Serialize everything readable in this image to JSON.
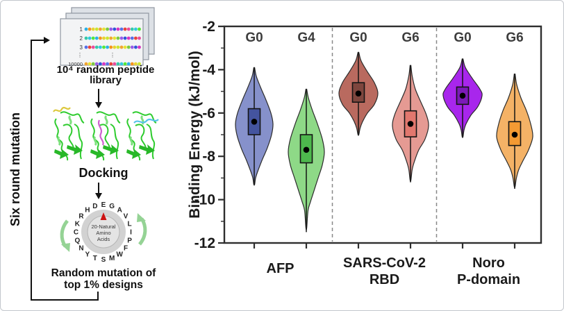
{
  "colors": {
    "frame": "#2e2e2e",
    "dashed_separator": "#888888",
    "axis_text": "#1a1a1a",
    "generation_label": "#3d3d3d",
    "protein_green": "#2ecc2e",
    "loop_line": "#111111",
    "card_fill": "#f3f4f5",
    "card_back_fill": "#dde1e6"
  },
  "workflow": {
    "library": {
      "row_labels": [
        "1",
        "2",
        "3",
        "⋮",
        "10000"
      ],
      "dots_per_row": 16,
      "caption": [
        "10⁴ random peptide",
        "library"
      ],
      "dot_palette": [
        "#2ab1e8",
        "#e84338",
        "#7bc943",
        "#f7941e",
        "#e84c9e",
        "#9a5ce8",
        "#e8d431",
        "#36c9a7",
        "#3056d8",
        "#c9e631",
        "#31c9e0",
        "#d836c0",
        "#f2a531",
        "#56e836",
        "#5670e8",
        "#e8e331"
      ]
    },
    "docking_label": "Docking",
    "docking_peptide_colors": [
      "#ddc93f",
      "#cf5fd0",
      "#55c2ea"
    ],
    "wheel": {
      "center_label": [
        "20-Natural",
        "Amino",
        "Acids"
      ],
      "pointer_color": "#cc1111",
      "rotate_arrow_color": "#95d395",
      "segments": [
        {
          "letter": "E",
          "color": "#f03b28"
        },
        {
          "letter": "G",
          "color": "#45d545"
        },
        {
          "letter": "A",
          "color": "#bac42a"
        },
        {
          "letter": "V",
          "color": "#45d545"
        },
        {
          "letter": "L",
          "color": "#ee3a68"
        },
        {
          "letter": "I",
          "color": "#45d545"
        },
        {
          "letter": "P",
          "color": "#3a77e0"
        },
        {
          "letter": "F",
          "color": "#45d545"
        },
        {
          "letter": "W",
          "color": "#f09a2f"
        },
        {
          "letter": "M",
          "color": "#45d545"
        },
        {
          "letter": "S",
          "color": "#f09a2f"
        },
        {
          "letter": "T",
          "color": "#45d545"
        },
        {
          "letter": "Y",
          "color": "#3a77e0"
        },
        {
          "letter": "N",
          "color": "#45d545"
        },
        {
          "letter": "Q",
          "color": "#38dede"
        },
        {
          "letter": "C",
          "color": "#45d545"
        },
        {
          "letter": "K",
          "color": "#e83bc6"
        },
        {
          "letter": "R",
          "color": "#38dede"
        },
        {
          "letter": "H",
          "color": "#45d545"
        },
        {
          "letter": "D",
          "color": "#3a77e0"
        }
      ]
    },
    "mutation_caption": [
      "Random mutation of",
      "top 1% designs"
    ],
    "loop_label": "Six round mutation"
  },
  "chart_data": {
    "type": "violin",
    "title": "",
    "xlabel": "",
    "ylabel": "Binding Energy (kJ/mol)",
    "ylim": [
      -12,
      -2
    ],
    "yticks": [
      -2,
      -4,
      -6,
      -8,
      -10,
      -12
    ],
    "minor_yticks": [
      -3,
      -5,
      -7,
      -9,
      -11
    ],
    "grid": false,
    "legend": "none",
    "groups": [
      {
        "category_lines": [
          "AFP"
        ],
        "violins": [
          {
            "generation": "G0",
            "fill": "#8691cb",
            "box_fill": "#44549f",
            "range": [
              -3.9,
              -9.3
            ],
            "q3": -5.8,
            "q1": -7.0,
            "median": -6.4,
            "profile": [
              [
                -3.9,
                0.6
              ],
              [
                -4.3,
                3
              ],
              [
                -4.8,
                9
              ],
              [
                -5.4,
                17
              ],
              [
                -6.0,
                24
              ],
              [
                -6.5,
                27
              ],
              [
                -7.0,
                25
              ],
              [
                -7.6,
                19
              ],
              [
                -8.2,
                11
              ],
              [
                -8.7,
                5
              ],
              [
                -9.0,
                2
              ],
              [
                -9.3,
                0.6
              ]
            ]
          },
          {
            "generation": "G4",
            "fill": "#8ed987",
            "box_fill": "#4db84d",
            "range": [
              -4.9,
              -11.5
            ],
            "q3": -7.0,
            "q1": -8.3,
            "median": -7.7,
            "profile": [
              [
                -4.9,
                0.6
              ],
              [
                -5.3,
                3
              ],
              [
                -5.9,
                9
              ],
              [
                -6.5,
                16
              ],
              [
                -7.2,
                23
              ],
              [
                -7.8,
                26
              ],
              [
                -8.4,
                23
              ],
              [
                -9.0,
                17
              ],
              [
                -9.6,
                11
              ],
              [
                -10.1,
                6
              ],
              [
                -10.5,
                2.5
              ],
              [
                -11.3,
                0.6
              ]
            ]
          }
        ]
      },
      {
        "category_lines": [
          "SARS-CoV-2",
          "RBD"
        ],
        "violins": [
          {
            "generation": "G0",
            "fill": "#b96a5f",
            "box_fill": "#7e463e",
            "range": [
              -3.2,
              -7.0
            ],
            "q3": -4.6,
            "q1": -5.5,
            "median": -5.1,
            "profile": [
              [
                -3.2,
                0.6
              ],
              [
                -3.6,
                4
              ],
              [
                -4.1,
                13
              ],
              [
                -4.6,
                23
              ],
              [
                -5.1,
                28
              ],
              [
                -5.6,
                23
              ],
              [
                -6.0,
                13
              ],
              [
                -6.4,
                6
              ],
              [
                -6.7,
                2.5
              ],
              [
                -7.0,
                0.6
              ]
            ]
          },
          {
            "generation": "G6",
            "fill": "#e59a93",
            "box_fill": "#e2776e",
            "range": [
              -3.8,
              -9.2
            ],
            "q3": -5.9,
            "q1": -7.1,
            "median": -6.5,
            "profile": [
              [
                -3.8,
                0.6
              ],
              [
                -4.3,
                2.5
              ],
              [
                -4.9,
                7
              ],
              [
                -5.5,
                15
              ],
              [
                -6.1,
                23
              ],
              [
                -6.6,
                26
              ],
              [
                -7.2,
                21
              ],
              [
                -7.7,
                12
              ],
              [
                -8.2,
                6
              ],
              [
                -8.6,
                2.5
              ],
              [
                -9.1,
                0.6
              ]
            ]
          }
        ]
      },
      {
        "category_lines": [
          "Noro",
          "P-domain"
        ],
        "violins": [
          {
            "generation": "G0",
            "fill": "#a826ec",
            "box_fill": "#7c1ab8",
            "range": [
              -3.5,
              -7.1
            ],
            "q3": -4.8,
            "q1": -5.6,
            "median": -5.2,
            "profile": [
              [
                -3.5,
                0.6
              ],
              [
                -3.9,
                4
              ],
              [
                -4.4,
                14
              ],
              [
                -4.9,
                25
              ],
              [
                -5.2,
                28
              ],
              [
                -5.7,
                22
              ],
              [
                -6.1,
                12
              ],
              [
                -6.5,
                5
              ],
              [
                -6.8,
                2
              ],
              [
                -7.1,
                0.6
              ]
            ]
          },
          {
            "generation": "G6",
            "fill": "#f4b266",
            "box_fill": "#f49a33",
            "range": [
              -4.2,
              -9.5
            ],
            "q3": -6.4,
            "q1": -7.5,
            "median": -7.0,
            "profile": [
              [
                -4.2,
                0.6
              ],
              [
                -4.7,
                3
              ],
              [
                -5.3,
                9
              ],
              [
                -5.9,
                17
              ],
              [
                -6.5,
                23
              ],
              [
                -7.1,
                26
              ],
              [
                -7.7,
                20
              ],
              [
                -8.2,
                12
              ],
              [
                -8.6,
                6
              ],
              [
                -9.0,
                2.5
              ],
              [
                -9.4,
                0.6
              ]
            ]
          }
        ]
      }
    ]
  }
}
